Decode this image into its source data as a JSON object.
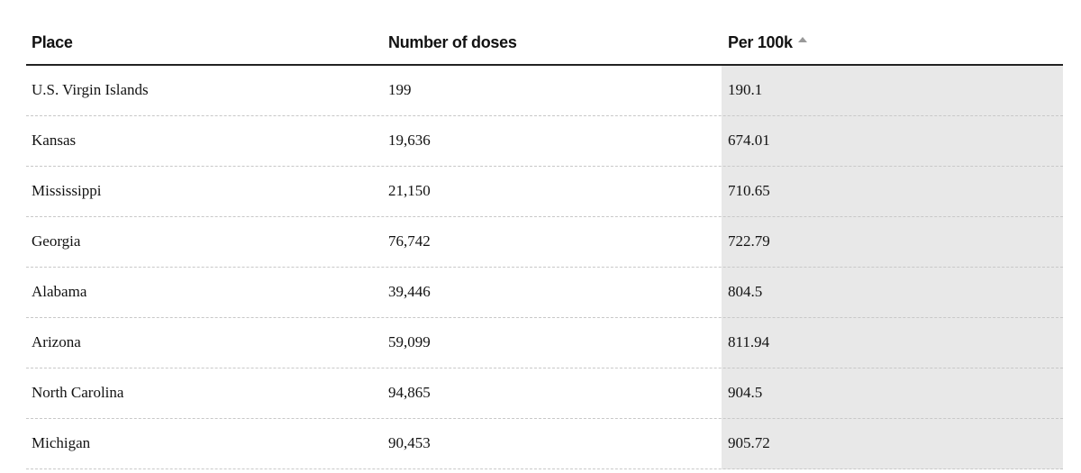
{
  "table": {
    "columns": [
      "Place",
      "Number of doses",
      "Per 100k"
    ],
    "sort_indicator": "sort-ascending-icon",
    "rows": [
      [
        "U.S. Virgin Islands",
        "199",
        "190.1"
      ],
      [
        "Kansas",
        "19,636",
        "674.01"
      ],
      [
        "Mississippi",
        "21,150",
        "710.65"
      ],
      [
        "Georgia",
        "76,742",
        "722.79"
      ],
      [
        "Alabama",
        "39,446",
        "804.5"
      ],
      [
        "Arizona",
        "59,099",
        "811.94"
      ],
      [
        "North Carolina",
        "94,865",
        "904.5"
      ],
      [
        "Michigan",
        "90,453",
        "905.72"
      ]
    ]
  }
}
